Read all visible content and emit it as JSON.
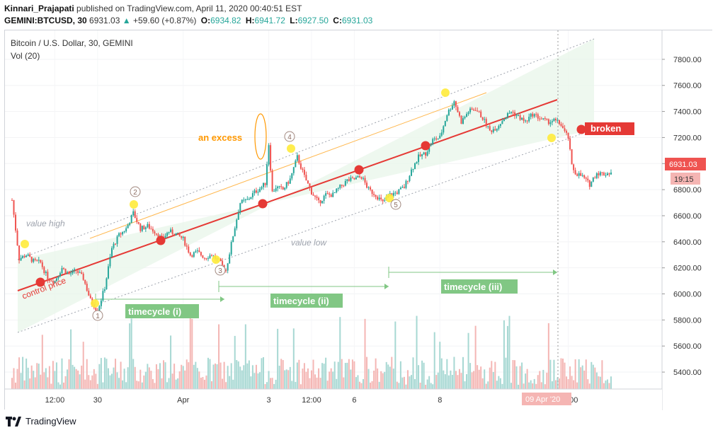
{
  "header": {
    "author": "Kinnari_Prajapati",
    "published": "published on TradingView.com, April 11, 2020 00:40:51 EST",
    "symbol": "GEMINI:BTCUSD, 30",
    "last": "6931.03",
    "change": "+59.60 (+0.87%)",
    "o_label": "O:",
    "o": "6934.82",
    "h_label": "H:",
    "h": "6941.72",
    "l_label": "L:",
    "l": "6927.50",
    "c_label": "C:",
    "c": "6931.03"
  },
  "legend": {
    "title": "Bitcoin / U.S. Dollar, 30, GEMINI",
    "indicator": "Vol (20)"
  },
  "price_badge": {
    "price": "6931.03",
    "countdown": "19:15"
  },
  "crosshair_date": "09 Apr '20",
  "footer": {
    "brand": "TradingView"
  },
  "colors": {
    "up": "#26a69a",
    "down": "#ef5350",
    "channel_fill": "#e8f5e9",
    "control_line": "#e53935",
    "excess_line": "#ffb74d",
    "timecycle_bg": "#81c784",
    "broken_bg": "#e53935"
  },
  "annotations": {
    "value_high": "value high",
    "value_low": "value low",
    "control_price": "control price",
    "an_excess": "an excess",
    "broken": "broken",
    "timecycle_1": "timecycle (i)",
    "timecycle_2": "timecycle (ii)",
    "timecycle_3": "timecycle (iii)",
    "points": [
      "1",
      "2",
      "3",
      "4",
      "5"
    ]
  },
  "chart_data": {
    "type": "candlestick",
    "title": "Bitcoin / U.S. Dollar, 30, GEMINI",
    "y_ticks": [
      "7800.00",
      "7600.00",
      "7400.00",
      "7200.00",
      "7000.00",
      "6800.00",
      "6600.00",
      "6400.00",
      "6200.00",
      "6000.00",
      "5800.00",
      "5600.00",
      "5400.00"
    ],
    "y_tick_values": [
      7800,
      7600,
      7400,
      7200,
      7000,
      6800,
      6600,
      6400,
      6200,
      6000,
      5800,
      5600,
      5400
    ],
    "ylim": [
      5270,
      7870
    ],
    "x_ticks": [
      "12:00",
      "30",
      "Apr",
      "3",
      "12:00",
      "6",
      "8",
      "12:00"
    ],
    "x_tick_hours": [
      12,
      24,
      48,
      72,
      84,
      96,
      120,
      156
    ],
    "xlim_hours": [
      0,
      164
    ],
    "price_path": [
      [
        0,
        6720
      ],
      [
        2,
        6270
      ],
      [
        4,
        6300
      ],
      [
        6,
        6250
      ],
      [
        8,
        6240
      ],
      [
        10,
        6120
      ],
      [
        12,
        6100
      ],
      [
        14,
        6200
      ],
      [
        16,
        6150
      ],
      [
        18,
        6180
      ],
      [
        20,
        6120
      ],
      [
        22,
        5950
      ],
      [
        24,
        5870
      ],
      [
        26,
        6050
      ],
      [
        28,
        6350
      ],
      [
        30,
        6450
      ],
      [
        32,
        6500
      ],
      [
        34,
        6620
      ],
      [
        36,
        6500
      ],
      [
        38,
        6520
      ],
      [
        40,
        6480
      ],
      [
        42,
        6420
      ],
      [
        44,
        6480
      ],
      [
        46,
        6460
      ],
      [
        48,
        6420
      ],
      [
        50,
        6300
      ],
      [
        52,
        6320
      ],
      [
        54,
        6280
      ],
      [
        56,
        6300
      ],
      [
        58,
        6250
      ],
      [
        60,
        6180
      ],
      [
        62,
        6450
      ],
      [
        64,
        6700
      ],
      [
        66,
        6720
      ],
      [
        68,
        6780
      ],
      [
        70,
        6820
      ],
      [
        71,
        6850
      ],
      [
        72,
        7150
      ],
      [
        73,
        6780
      ],
      [
        74,
        6820
      ],
      [
        76,
        6800
      ],
      [
        78,
        6880
      ],
      [
        80,
        7050
      ],
      [
        82,
        6900
      ],
      [
        84,
        6780
      ],
      [
        86,
        6700
      ],
      [
        88,
        6760
      ],
      [
        90,
        6760
      ],
      [
        92,
        6820
      ],
      [
        94,
        6870
      ],
      [
        96,
        6880
      ],
      [
        98,
        6900
      ],
      [
        100,
        6800
      ],
      [
        102,
        6760
      ],
      [
        104,
        6700
      ],
      [
        106,
        6760
      ],
      [
        108,
        6780
      ],
      [
        110,
        6820
      ],
      [
        112,
        6950
      ],
      [
        114,
        7050
      ],
      [
        116,
        7080
      ],
      [
        118,
        7180
      ],
      [
        120,
        7200
      ],
      [
        122,
        7380
      ],
      [
        124,
        7480
      ],
      [
        126,
        7320
      ],
      [
        128,
        7400
      ],
      [
        130,
        7420
      ],
      [
        132,
        7350
      ],
      [
        134,
        7250
      ],
      [
        136,
        7280
      ],
      [
        138,
        7350
      ],
      [
        140,
        7400
      ],
      [
        142,
        7360
      ],
      [
        144,
        7320
      ],
      [
        146,
        7380
      ],
      [
        148,
        7350
      ],
      [
        150,
        7320
      ],
      [
        152,
        7330
      ],
      [
        154,
        7300
      ],
      [
        155,
        7240
      ],
      [
        156,
        7200
      ],
      [
        157,
        6980
      ],
      [
        158,
        6930
      ],
      [
        160,
        6900
      ],
      [
        162,
        6840
      ],
      [
        164,
        6930
      ],
      [
        166,
        6920
      ],
      [
        168,
        6931
      ]
    ],
    "control_points_hours": [
      12,
      56,
      75,
      104,
      123,
      154
    ],
    "control_points_prices": [
      6030,
      6360,
      6620,
      6890,
      7070,
      7190
    ]
  }
}
